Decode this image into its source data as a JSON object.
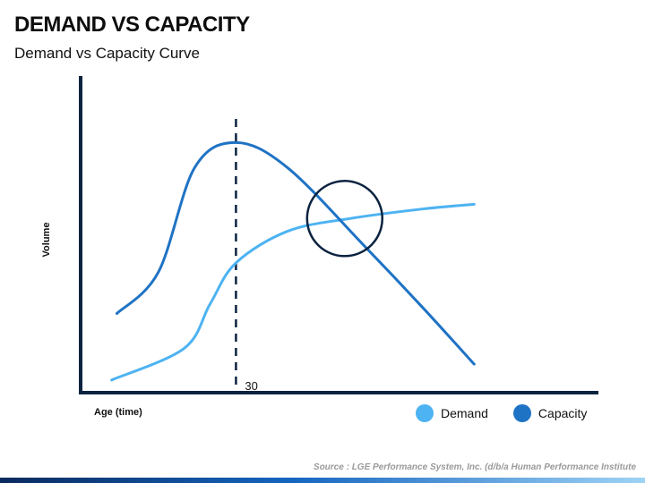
{
  "header": {
    "title": "DEMAND VS CAPACITY",
    "subtitle": "Demand vs Capacity Curve"
  },
  "chart_data": {
    "type": "line",
    "xlabel": "Age (time)",
    "ylabel": "Volume",
    "series": [
      {
        "name": "Demand",
        "color": "#4db3f2",
        "points": [
          [
            6,
            4
          ],
          [
            20,
            14
          ],
          [
            25,
            28
          ],
          [
            30,
            41
          ],
          [
            40,
            51
          ],
          [
            52,
            55
          ],
          [
            66,
            58
          ],
          [
            76,
            59.5
          ]
        ]
      },
      {
        "name": "Capacity",
        "color": "#1f73c4",
        "points": [
          [
            7,
            25
          ],
          [
            15,
            38
          ],
          [
            22,
            71
          ],
          [
            30,
            79
          ],
          [
            40,
            71
          ],
          [
            55,
            46
          ],
          [
            66,
            27
          ],
          [
            76,
            9
          ]
        ]
      }
    ],
    "annotations": {
      "vline_x": 30,
      "vline_label": "30",
      "circle_center": [
        51,
        55
      ]
    },
    "legend_position": "bottom-right"
  },
  "footer": {
    "source": "Source : LGE Performance System, Inc. (d/b/a Human Performance Institute"
  }
}
